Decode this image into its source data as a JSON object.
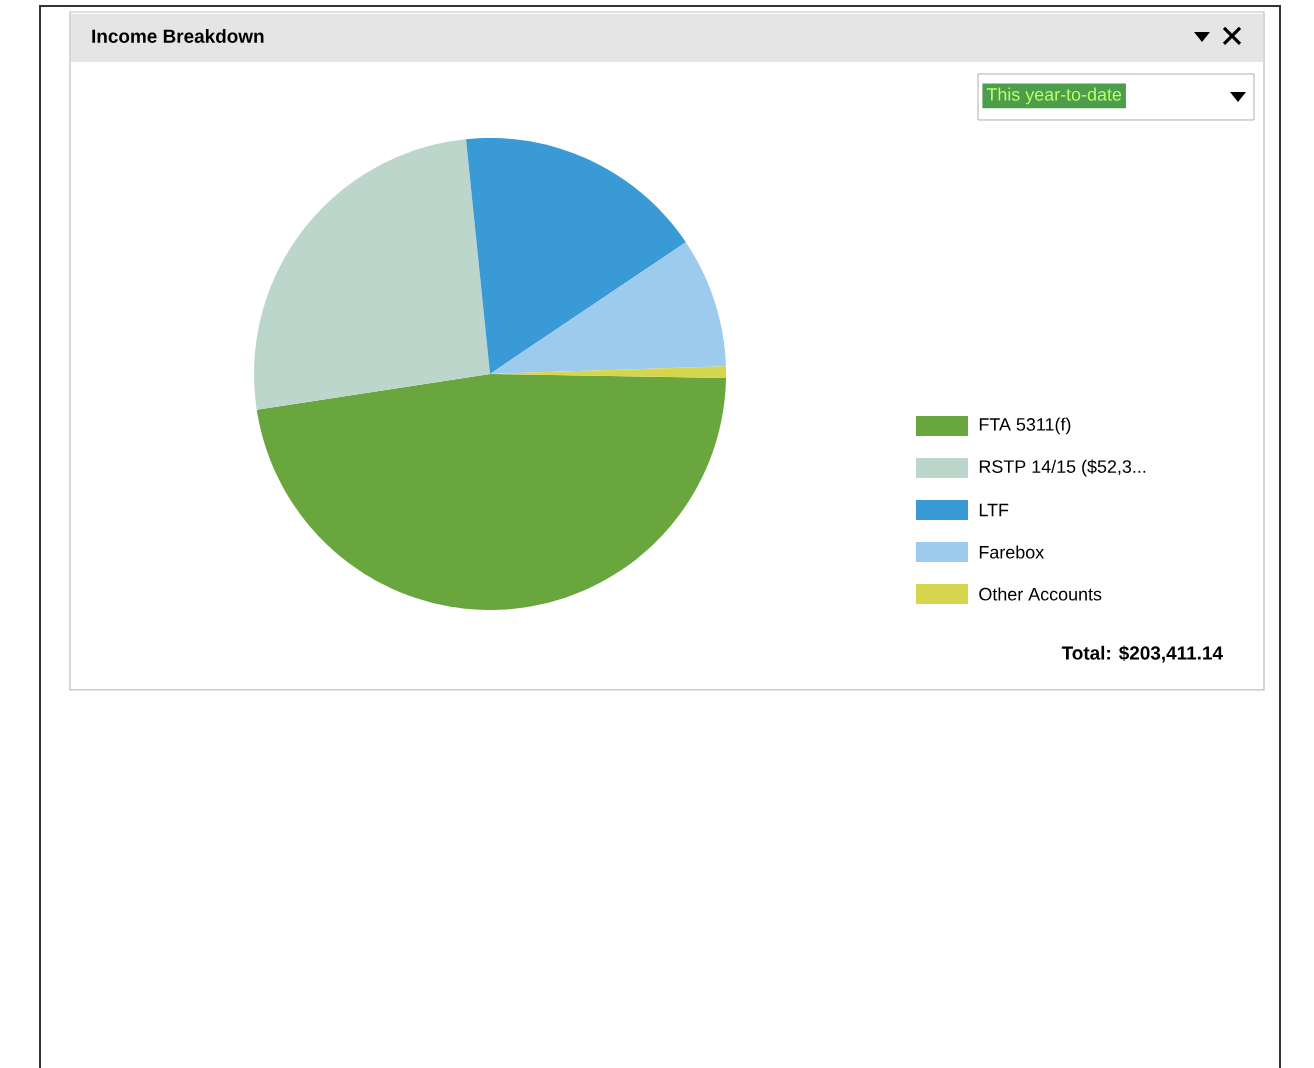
{
  "chart_data": {
    "type": "pie",
    "title": "Income Breakdown",
    "categories": [
      "FTA 5311(f)",
      "RSTP  14/15 ($52,3...",
      "LTF",
      "Farebox",
      "Other Accounts"
    ],
    "values": [
      47.3,
      25.8,
      17.2,
      8.9,
      0.8
    ],
    "colors": [
      "#6aa63e",
      "#bcd6cc",
      "#3a9ad6",
      "#9ccbee",
      "#d6d64e"
    ],
    "legend": "right",
    "annotations": [
      "This year-to-date",
      "Total: $203,411.14"
    ]
  }
}
